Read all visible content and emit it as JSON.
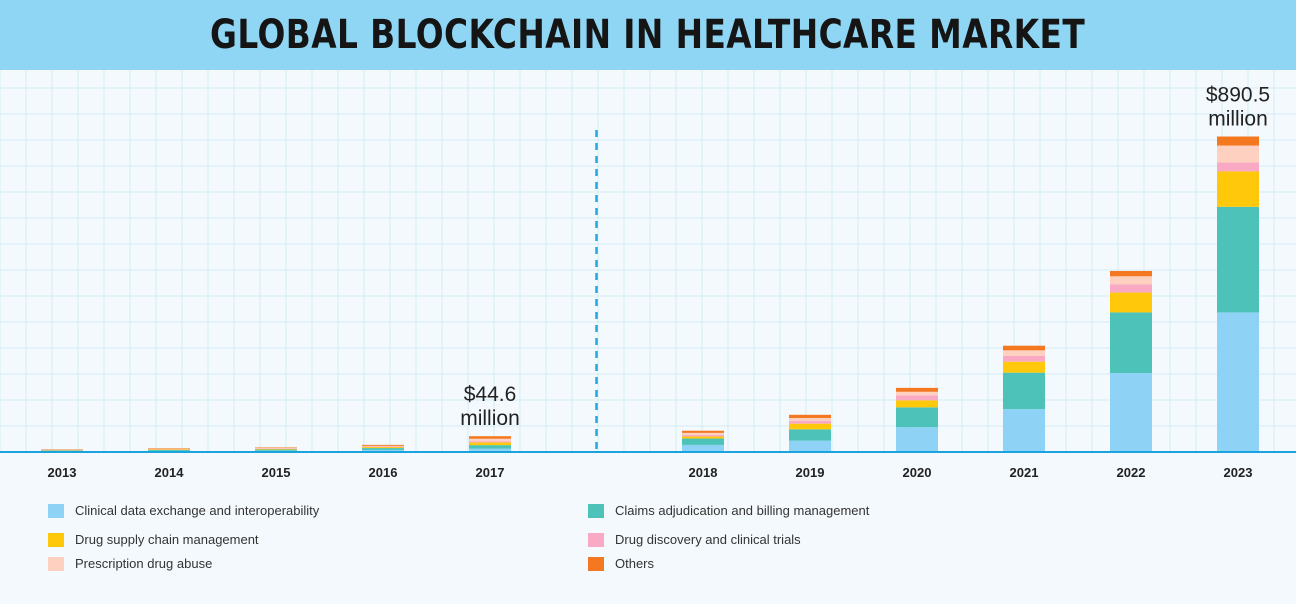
{
  "title": "GLOBAL BLOCKCHAIN IN HEALTHCARE MARKET",
  "chart_data": {
    "type": "bar",
    "stacked": true,
    "title": "GLOBAL BLOCKCHAIN IN HEALTHCARE MARKET",
    "categories": [
      "2013",
      "2014",
      "2015",
      "2016",
      "2017",
      "2018",
      "2019",
      "2020",
      "2021",
      "2022",
      "2023"
    ],
    "series": [
      {
        "name": "Clinical data exchange and interoperability",
        "color": "#8ed3f5",
        "values": [
          2.2,
          3.0,
          3.6,
          5.8,
          9.3,
          20,
          32,
          70,
          121,
          223,
          394
        ]
      },
      {
        "name": "Claims adjudication and billing management",
        "color": "#4dc2b8",
        "values": [
          1.9,
          2.6,
          3.3,
          5.3,
          10.1,
          18,
          32,
          56,
          103,
          171,
          298
        ]
      },
      {
        "name": "Drug supply chain management",
        "color": "#ffc80a",
        "values": [
          1.1,
          1.6,
          1.9,
          2.8,
          7.5,
          6,
          16,
          20,
          31,
          56,
          100
        ]
      },
      {
        "name": "Drug discovery and clinical trials",
        "color": "#f9a9c4",
        "values": [
          0.8,
          1.1,
          1.3,
          1.8,
          3.7,
          4,
          8,
          14,
          16,
          23,
          25
        ]
      },
      {
        "name": "Prescription drug abuse",
        "color": "#fdd0c0",
        "values": [
          0.7,
          0.9,
          1.1,
          1.8,
          6.8,
          6,
          8,
          10,
          16,
          23,
          48
        ]
      },
      {
        "name": "Others",
        "color": "#f47820",
        "values": [
          1.1,
          1.5,
          1.5,
          2.6,
          7.2,
          6,
          9,
          11,
          13,
          15,
          25.5
        ]
      }
    ],
    "annotations": [
      {
        "category": "2017",
        "text": "$44.6",
        "text2": "million"
      },
      {
        "category": "2023",
        "text": "$890.5",
        "text2": "million"
      }
    ],
    "divider_after": "2017",
    "ylim": [
      0,
      1050
    ],
    "grid": true,
    "legend_position": "bottom"
  }
}
